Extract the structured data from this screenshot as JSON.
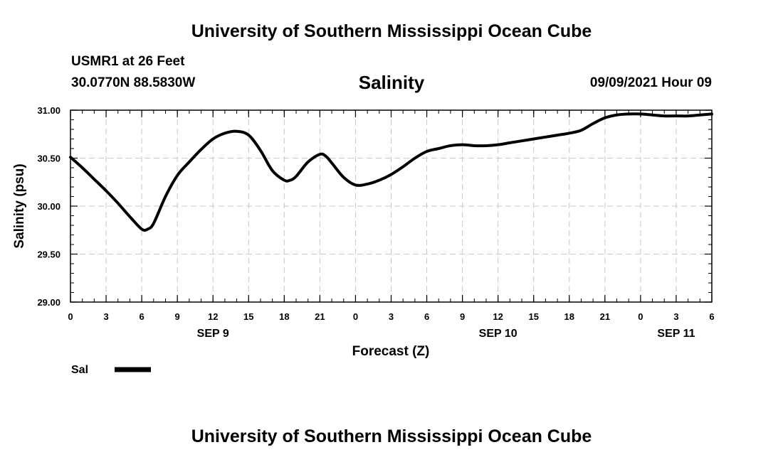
{
  "header": {
    "top_title": "University of Southern Mississippi Ocean Cube",
    "station": "USMR1 at 26 Feet",
    "location": "30.0770N  88.5830W",
    "variable_title": "Salinity",
    "forecast_time": "09/09/2021 Hour 09"
  },
  "footer": {
    "bottom_title": "University of Southern Mississippi Ocean Cube"
  },
  "legend": {
    "label": "Sal"
  },
  "colors": {
    "line": "#000000",
    "grid": "#c8c8c8"
  },
  "chart_data": {
    "type": "line",
    "title": "Salinity",
    "xlabel": "Forecast (Z)",
    "ylabel": "Salinity (psu)",
    "xlim": [
      0,
      54
    ],
    "ylim": [
      29.0,
      31.0
    ],
    "y_ticks": [
      29.0,
      29.5,
      30.0,
      30.5,
      31.0
    ],
    "y_tick_labels": [
      "29.00",
      "29.50",
      "30.00",
      "30.50",
      "31.00"
    ],
    "x_ticks": [
      0,
      3,
      6,
      9,
      12,
      15,
      18,
      21,
      24,
      27,
      30,
      33,
      36,
      39,
      42,
      45,
      48,
      51,
      54
    ],
    "x_tick_labels": [
      "0",
      "3",
      "6",
      "9",
      "12",
      "15",
      "18",
      "21",
      "0",
      "3",
      "6",
      "9",
      "12",
      "15",
      "18",
      "21",
      "0",
      "3",
      "6"
    ],
    "date_labels": [
      {
        "hour": 12,
        "label": "SEP 9"
      },
      {
        "hour": 36,
        "label": "SEP 10"
      },
      {
        "hour": 51,
        "label": "SEP 11"
      }
    ],
    "grid": true,
    "legend_position": "bottom-left",
    "series": [
      {
        "name": "Sal",
        "x": [
          0,
          1,
          2,
          3,
          4,
          5,
          6,
          6.5,
          7,
          8,
          9,
          10,
          11,
          12,
          13,
          14,
          15,
          16,
          17,
          18,
          18.5,
          19,
          20,
          21,
          21.5,
          22,
          23,
          24,
          25,
          26,
          27,
          28,
          29,
          30,
          31,
          32,
          33,
          34,
          35,
          36,
          37,
          38,
          39,
          40,
          41,
          42,
          43,
          44,
          45,
          46,
          47,
          48,
          49,
          50,
          51,
          52,
          53,
          54
        ],
        "values": [
          30.51,
          30.4,
          30.28,
          30.16,
          30.03,
          29.89,
          29.76,
          29.76,
          29.82,
          30.1,
          30.32,
          30.46,
          30.59,
          30.7,
          30.76,
          30.78,
          30.74,
          30.58,
          30.37,
          30.27,
          30.27,
          30.31,
          30.46,
          30.54,
          30.52,
          30.45,
          30.3,
          30.22,
          30.23,
          30.27,
          30.33,
          30.41,
          30.5,
          30.57,
          30.6,
          30.63,
          30.64,
          30.63,
          30.63,
          30.64,
          30.66,
          30.68,
          30.7,
          30.72,
          30.74,
          30.76,
          30.79,
          30.86,
          30.92,
          30.95,
          30.96,
          30.96,
          30.95,
          30.94,
          30.94,
          30.94,
          30.95,
          30.96
        ]
      }
    ]
  }
}
